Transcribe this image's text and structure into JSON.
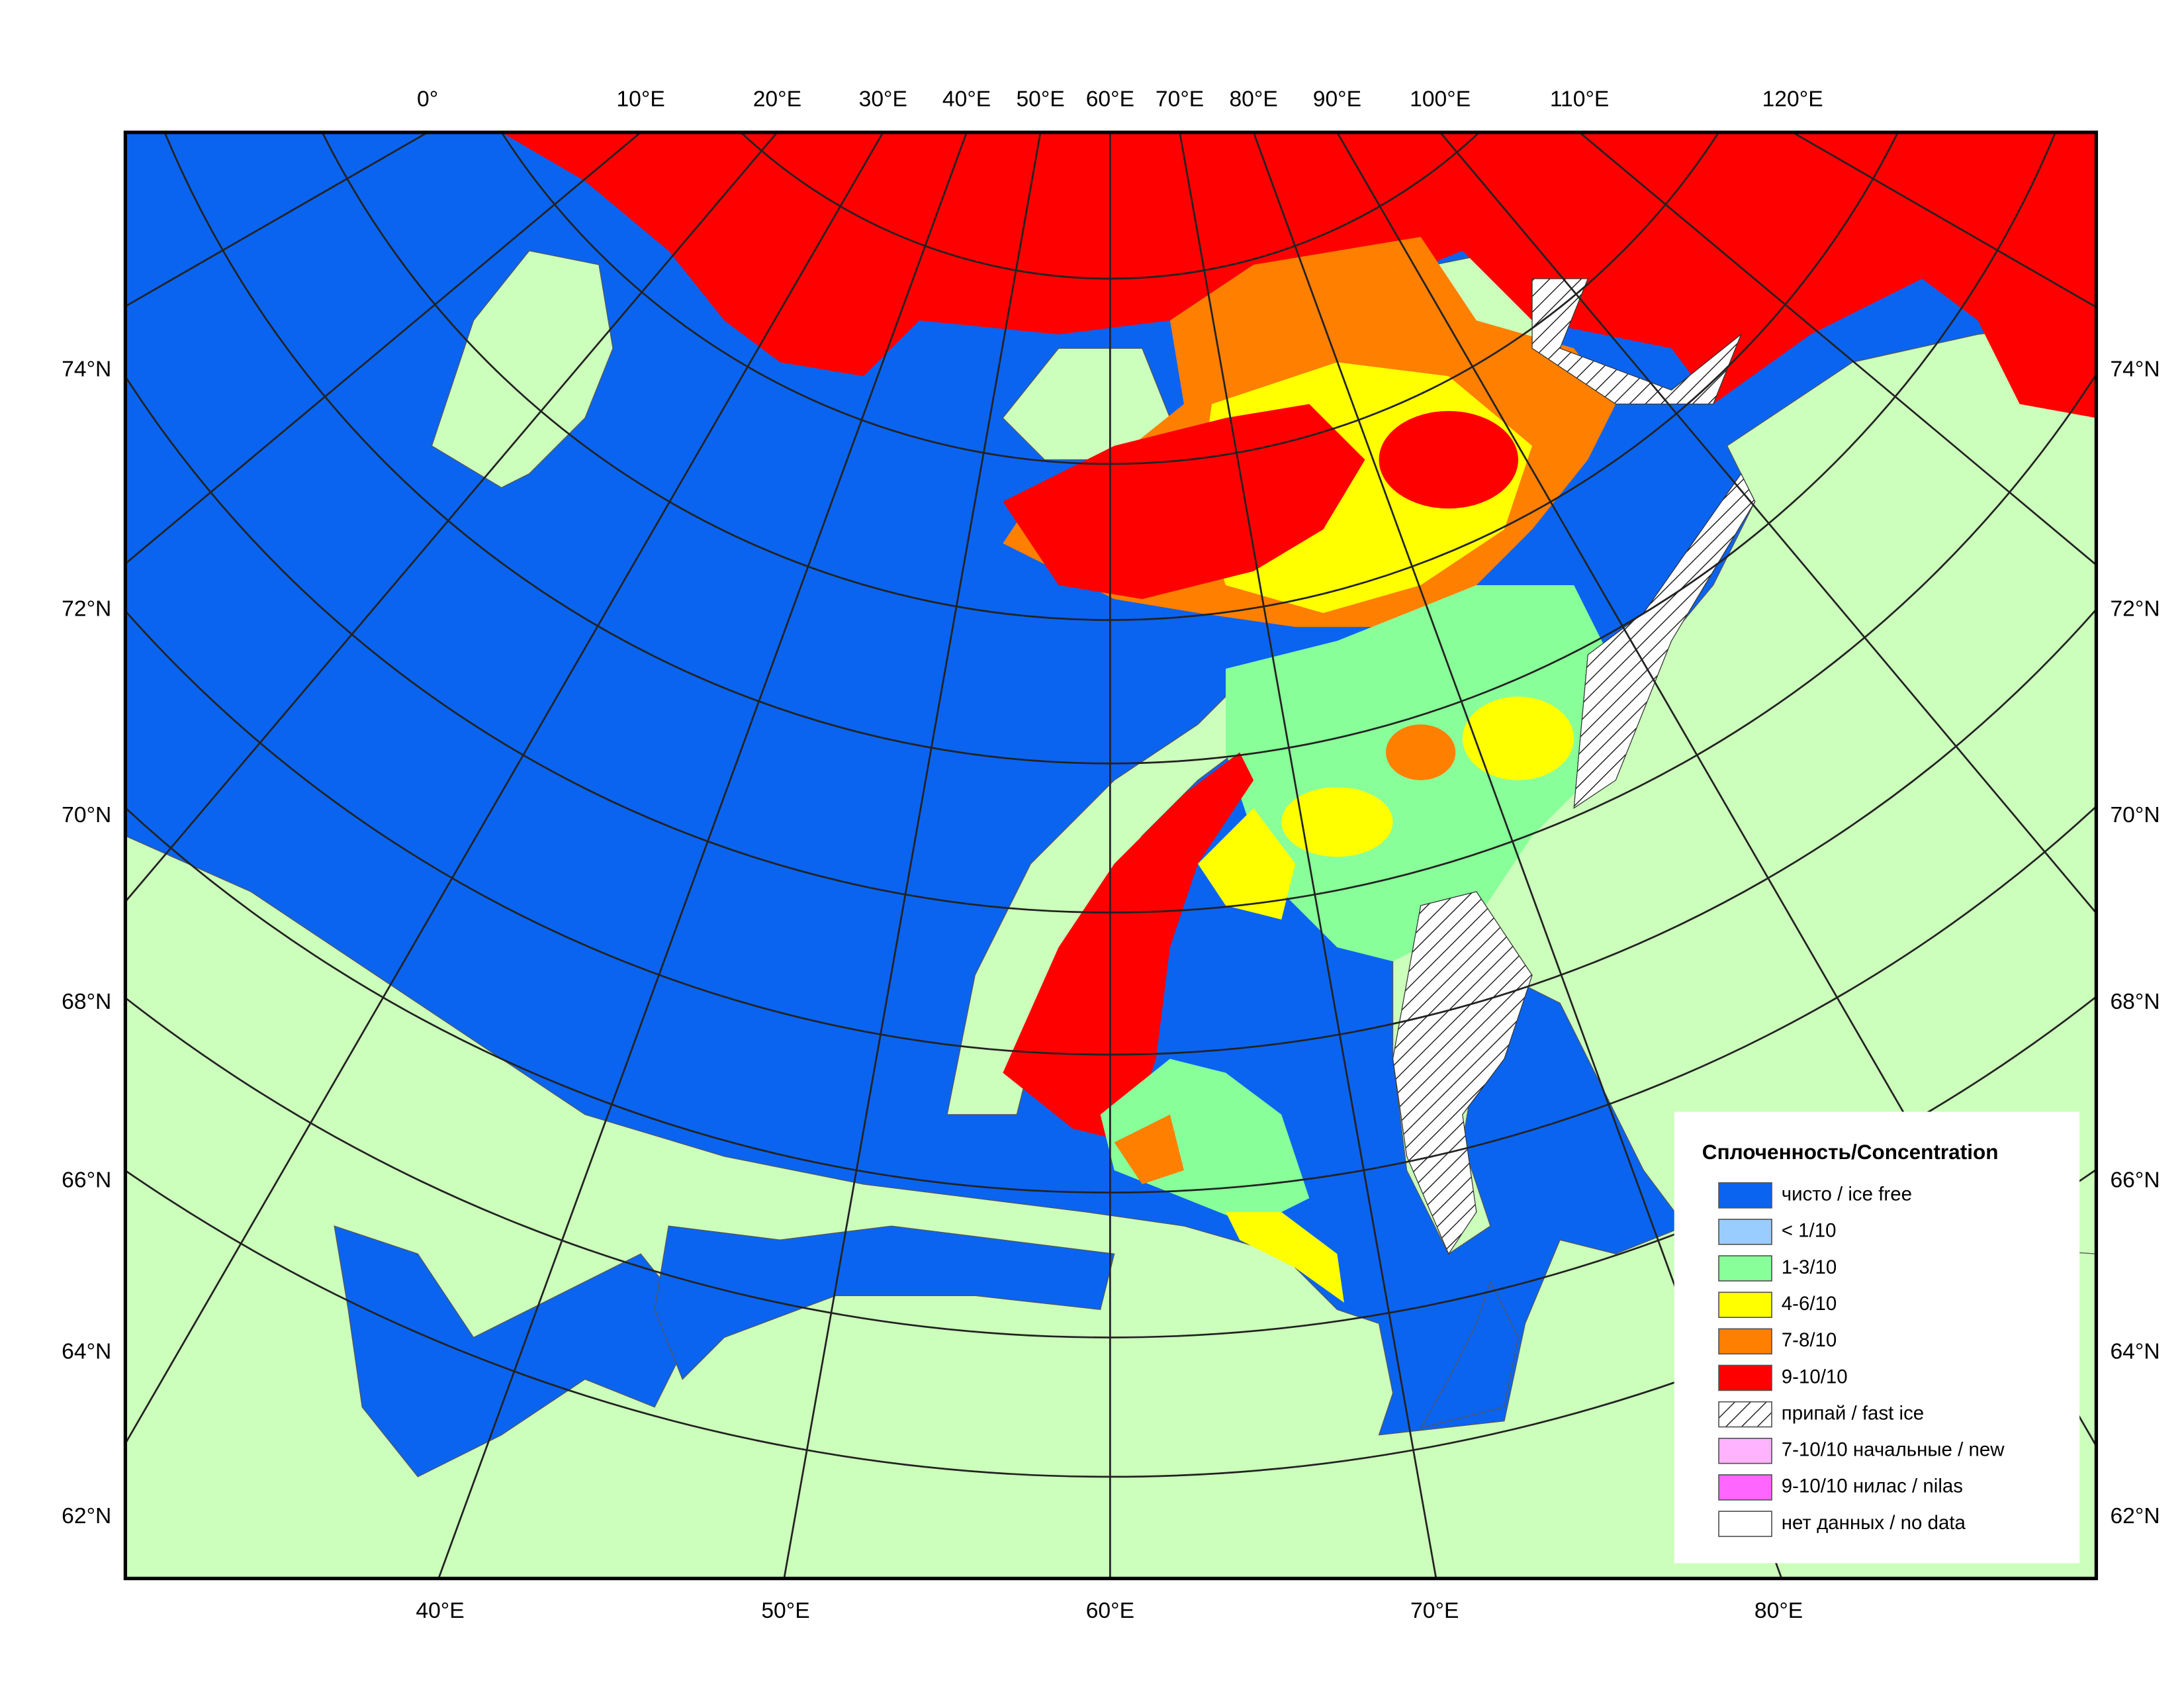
{
  "map": {
    "top_longitude_labels": [
      "0°",
      "10°E",
      "20°E",
      "30°E",
      "40°E",
      "50°E",
      "60°E",
      "70°E",
      "80°E",
      "90°E",
      "100°E",
      "110°E",
      "120°E"
    ],
    "latitude_labels": [
      "74°N",
      "72°N",
      "70°N",
      "68°N",
      "66°N",
      "64°N",
      "62°N"
    ],
    "bottom_longitude_labels": [
      "40°E",
      "50°E",
      "60°E",
      "70°E",
      "80°E"
    ],
    "legend": {
      "title": "Сплоченность/Concentration",
      "items": [
        "чисто / ice free",
        "< 1/10",
        "1-3/10",
        "4-6/10",
        "7-8/10",
        "9-10/10",
        "припай / fast ice",
        "7-10/10 начальные / new",
        "9-10/10 нилас / nilas",
        "нет данных / no data"
      ]
    }
  }
}
